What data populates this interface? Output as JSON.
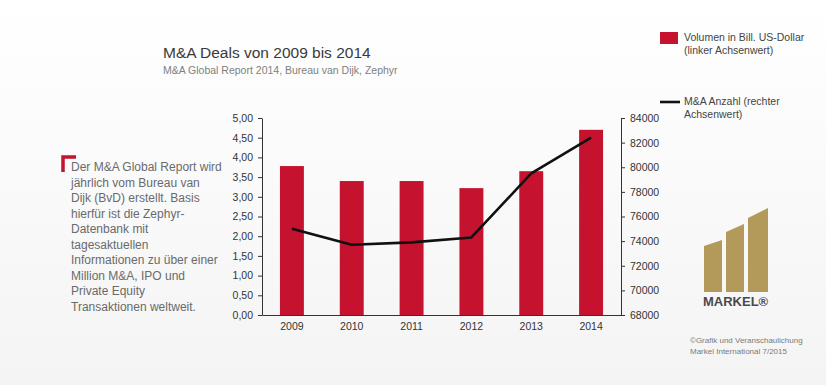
{
  "chart_data": {
    "type": "bar",
    "title": "M&A Deals von 2009 bis 2014",
    "subtitle": "M&A Global Report 2014, Bureau van Dijk, Zephyr",
    "categories": [
      "2009",
      "2010",
      "2011",
      "2012",
      "2013",
      "2014"
    ],
    "series": [
      {
        "name": "Volumen in Bill. US-Dollar (linker Achsenwert)",
        "type": "bar",
        "color": "#c4122f",
        "values": [
          3.78,
          3.4,
          3.4,
          3.22,
          3.65,
          4.7
        ]
      },
      {
        "name": "M&A Anzahl (rechter Achsenwert)",
        "type": "line",
        "color": "#111111",
        "axis": "y2",
        "values": [
          75000,
          73700,
          73900,
          74300,
          79500,
          82400
        ]
      }
    ],
    "ylim": [
      0,
      5
    ],
    "yticks": [
      {
        "value": 0,
        "label": "0,00"
      },
      {
        "value": 0.5,
        "label": "0,50"
      },
      {
        "value": 1,
        "label": "1,00"
      },
      {
        "value": 1.5,
        "label": "1,50"
      },
      {
        "value": 2,
        "label": "2,00"
      },
      {
        "value": 2.5,
        "label": "2,50"
      },
      {
        "value": 3,
        "label": "3,00"
      },
      {
        "value": 3.5,
        "label": "3,50"
      },
      {
        "value": 4,
        "label": "4,00"
      },
      {
        "value": 4.5,
        "label": "4,50"
      },
      {
        "value": 5,
        "label": "5,00"
      }
    ],
    "y2lim": [
      68000,
      84000
    ],
    "y2ticks": [
      68000,
      70000,
      72000,
      74000,
      76000,
      78000,
      80000,
      82000,
      84000
    ],
    "grid": false,
    "legend": "right",
    "annotations": [
      "Der M&A Global Report wird jährlich vom Bureau van Dijk (BvD) erstellt. Basis hierfür ist die Zephyr-Datenbank mit tagesaktuellen Informationen zu über einer Million M&A, IPO und Private Equity Transaktionen weltweit.",
      "MARKEL®",
      "©Grafik und Veranschaulichung Markel International 7/2015"
    ]
  }
}
